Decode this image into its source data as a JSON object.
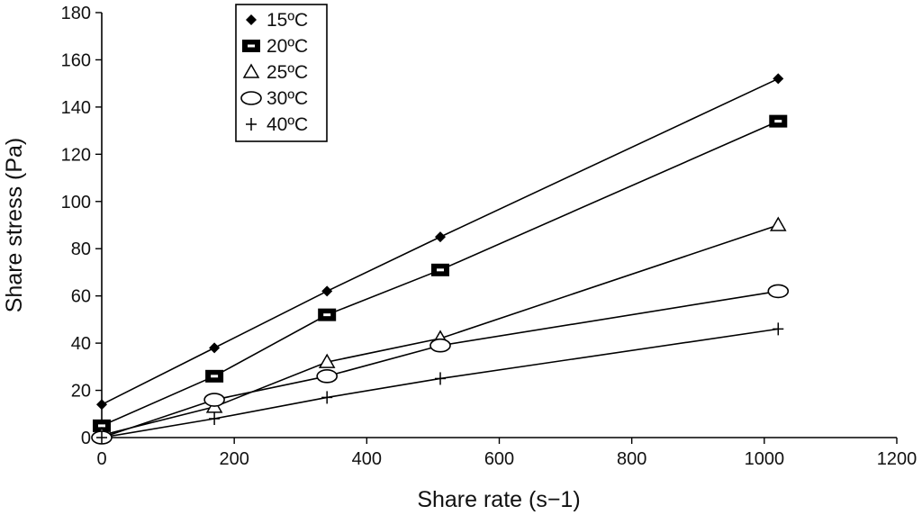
{
  "chart_data": {
    "type": "line",
    "title": "",
    "xlabel": "Share rate (s−1)",
    "ylabel": "Share stress (Pa)",
    "xlim": [
      0,
      1200
    ],
    "ylim": [
      0,
      180
    ],
    "xticks": [
      0,
      200,
      400,
      600,
      800,
      1000,
      1200
    ],
    "yticks": [
      0,
      20,
      40,
      60,
      80,
      100,
      120,
      140,
      160,
      180
    ],
    "grid": false,
    "legend_position": "top-left",
    "series": [
      {
        "name": "15ºC",
        "marker": "diamond",
        "x": [
          0,
          170,
          340,
          511,
          1021
        ],
        "y": [
          14,
          38,
          62,
          85,
          152
        ]
      },
      {
        "name": "20ºC",
        "marker": "square",
        "x": [
          0,
          170,
          340,
          511,
          1021
        ],
        "y": [
          5,
          26,
          52,
          71,
          134
        ]
      },
      {
        "name": "25ºC",
        "marker": "triangle",
        "x": [
          0,
          170,
          340,
          511,
          1021
        ],
        "y": [
          1,
          13,
          32,
          42,
          90
        ]
      },
      {
        "name": "30ºC",
        "marker": "circle",
        "x": [
          0,
          170,
          340,
          511,
          1021
        ],
        "y": [
          0,
          16,
          26,
          39,
          62
        ]
      },
      {
        "name": "40ºC",
        "marker": "plus",
        "x": [
          0,
          170,
          340,
          511,
          1021
        ],
        "y": [
          0,
          8,
          17,
          25,
          46
        ]
      }
    ]
  }
}
